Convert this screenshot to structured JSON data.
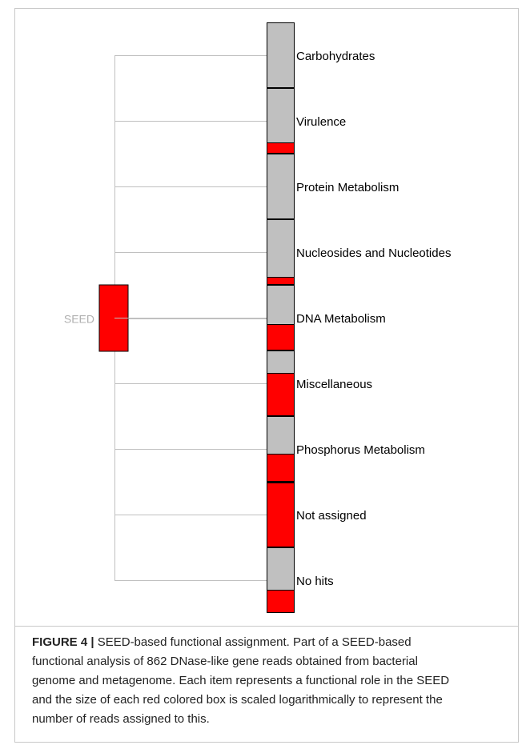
{
  "tree": {
    "root": {
      "label": "SEED"
    },
    "nodes": [
      {
        "label": "Carbohydrates"
      },
      {
        "label": "Virulence"
      },
      {
        "label": "Protein Metabolism"
      },
      {
        "label": "Nucleosides and Nucleotides"
      },
      {
        "label": "DNA Metabolism"
      },
      {
        "label": "Miscellaneous"
      },
      {
        "label": "Phosphorus Metabolism"
      },
      {
        "label": "Not assigned"
      },
      {
        "label": "No hits"
      }
    ]
  },
  "caption": {
    "label": "FIGURE 4 |",
    "lines": [
      "SEED-based functional assignment. Part of a SEED-based",
      "functional analysis of 862 DNase-like gene reads obtained from bacterial",
      "genome and metagenome. Each item represents a functional role in the SEED",
      "and the size of each red colored box is scaled logarithmically to represent the",
      "number of reads assigned to this."
    ]
  }
}
